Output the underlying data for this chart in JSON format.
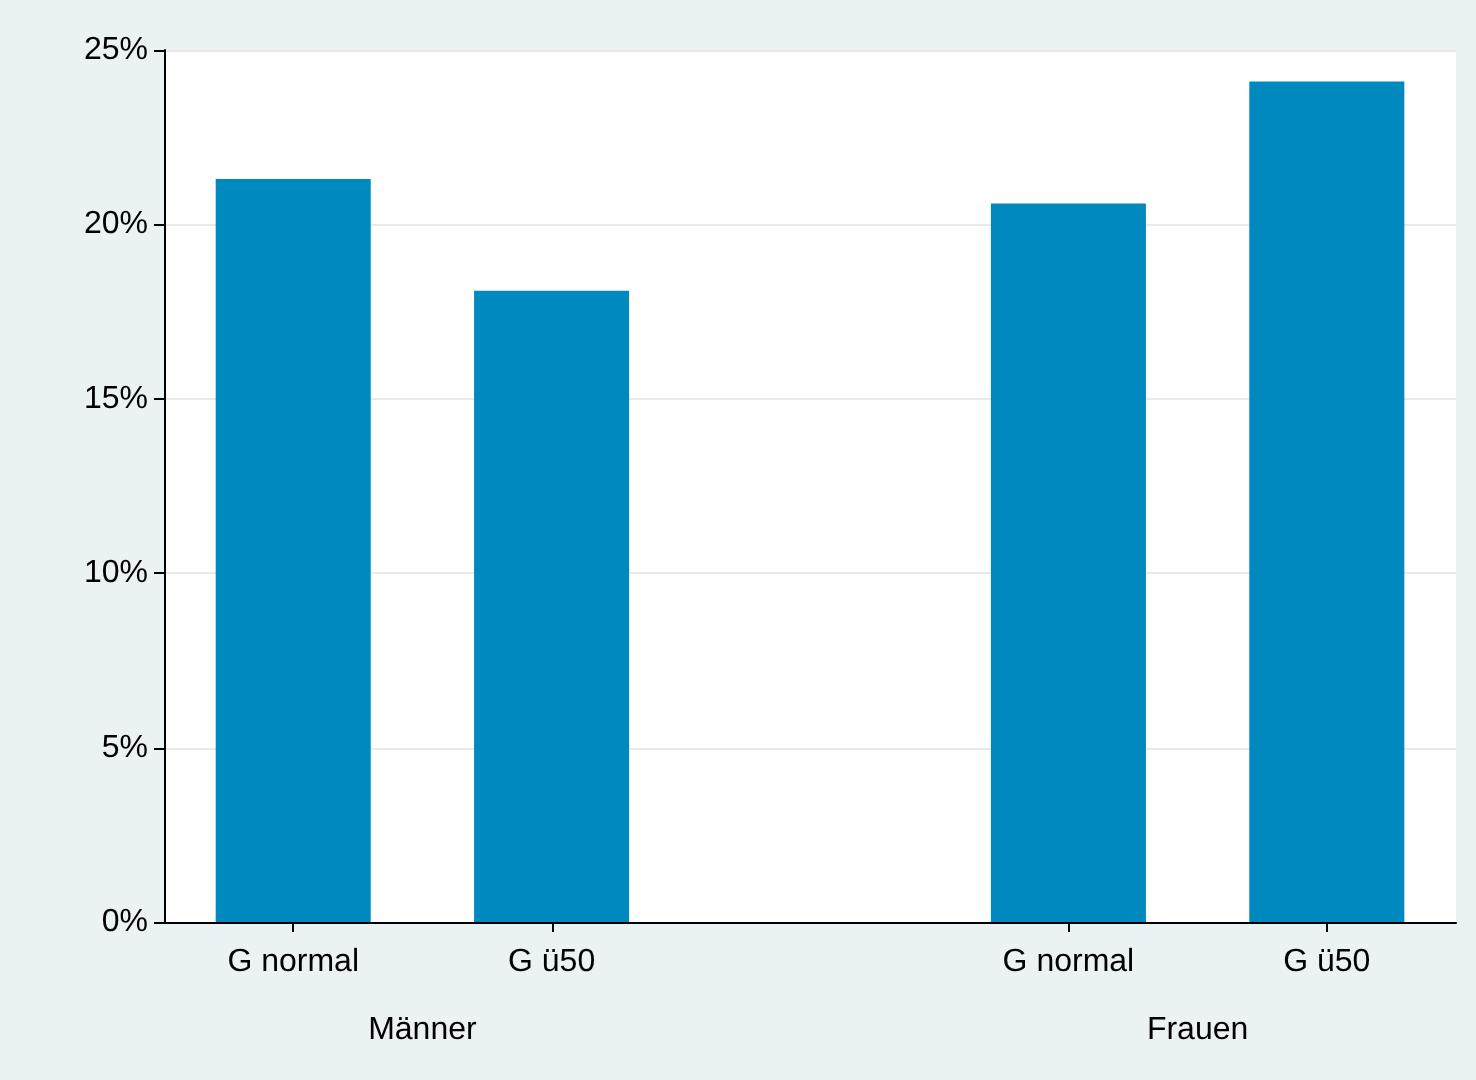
{
  "chart_data": {
    "type": "bar",
    "categories": [
      "G normal",
      "G ü50",
      null,
      "G normal",
      "G ü50"
    ],
    "values": [
      21.3,
      18.1,
      null,
      20.6,
      24.1
    ],
    "color": "#0089bf",
    "annotations": [
      "Männer",
      "Frauen"
    ],
    "ylim": [
      0,
      25
    ],
    "yticks": [
      {
        "value": 0,
        "label": "0%"
      },
      {
        "value": 5,
        "label": "5%"
      },
      {
        "value": 10,
        "label": "10%"
      },
      {
        "value": 15,
        "label": "15%"
      },
      {
        "value": 20,
        "label": "20%"
      },
      {
        "value": 25,
        "label": "25%"
      }
    ],
    "grid": "y"
  }
}
